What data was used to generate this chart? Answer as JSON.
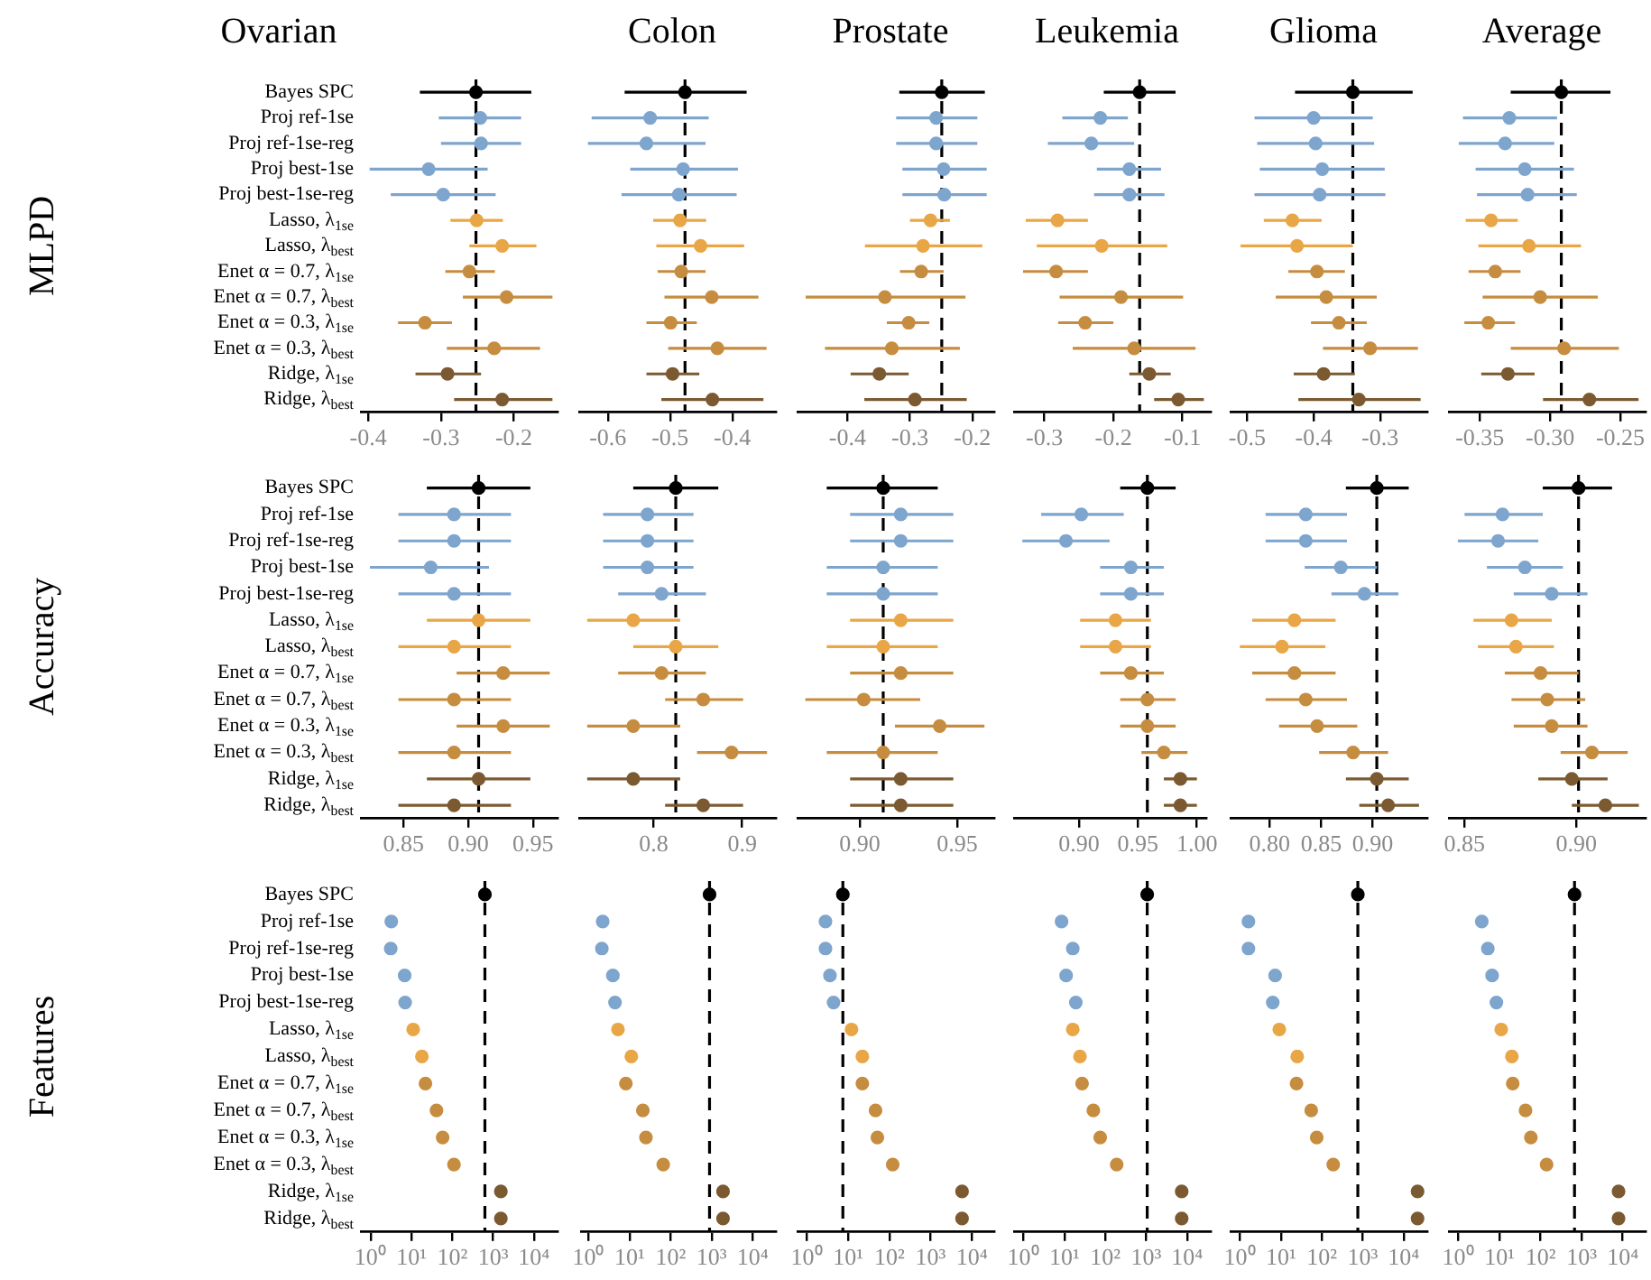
{
  "chart_data": [
    {
      "type": "scatter",
      "orientation": "horizontal",
      "marker": "circle",
      "title": "Ovarian",
      "ylabel": "MLPD",
      "categories": [
        "Bayes SPC",
        "Proj ref-1se",
        "Proj ref-1se-reg",
        "Proj best-1se",
        "Proj best-1se-reg",
        "Lasso, λ$_{1se}$",
        "Lasso, λ$_{best}$",
        "Enet α = 0.7, λ$_{1se}$",
        "Enet α = 0.7, λ$_{best}$",
        "Enet α = 0.3, λ$_{1se}$",
        "Enet α = 0.3, λ$_{best}$",
        "Ridge, λ$_{1se}$",
        "Ridge, λ$_{best}$"
      ],
      "colors": [
        "#000000",
        "#7ea5cd",
        "#7ea5cd",
        "#7ea5cd",
        "#7ea5cd",
        "#e9a647",
        "#e9a647",
        "#c68d40",
        "#c68d40",
        "#c68d40",
        "#c68d40",
        "#7c5a31",
        "#7c5a31"
      ],
      "xlim": [
        -0.41,
        -0.14
      ],
      "xticks": [
        -0.4,
        -0.3,
        -0.2
      ],
      "ref_lines": [
        {
          "axis": "x",
          "value": -0.252,
          "line_style": "dashed"
        }
      ],
      "values": [
        -0.252,
        -0.246,
        -0.245,
        -0.317,
        -0.297,
        -0.251,
        -0.216,
        -0.261,
        -0.21,
        -0.322,
        -0.227,
        -0.291,
        -0.216
      ],
      "errors": [
        [
          -0.329,
          -0.176
        ],
        [
          -0.303,
          -0.19
        ],
        [
          -0.3,
          -0.19
        ],
        [
          -0.398,
          -0.236
        ],
        [
          -0.369,
          -0.225
        ],
        [
          -0.287,
          -0.215
        ],
        [
          -0.261,
          -0.169
        ],
        [
          -0.294,
          -0.226
        ],
        [
          -0.27,
          -0.147
        ],
        [
          -0.359,
          -0.285
        ],
        [
          -0.292,
          -0.164
        ],
        [
          -0.335,
          -0.245
        ],
        [
          -0.282,
          -0.147
        ]
      ]
    },
    {
      "type": "scatter",
      "orientation": "horizontal",
      "marker": "circle",
      "tick_labels": "x",
      "title": "Colon",
      "categories": [
        null,
        null,
        null,
        null,
        null,
        null,
        null,
        null,
        null,
        null,
        null,
        null,
        null
      ],
      "colors": [
        "#000000",
        "#7ea5cd",
        "#7ea5cd",
        "#7ea5cd",
        "#7ea5cd",
        "#e9a647",
        "#e9a647",
        "#c68d40",
        "#c68d40",
        "#c68d40",
        "#c68d40",
        "#7c5a31",
        "#7c5a31"
      ],
      "xlim": [
        -0.646,
        -0.33
      ],
      "xticks": [
        -0.6,
        -0.5,
        -0.4
      ],
      "ref_lines": [
        {
          "axis": "x",
          "value": -0.476,
          "line_style": "dashed"
        }
      ],
      "values": [
        -0.476,
        -0.532,
        -0.538,
        -0.479,
        -0.486,
        -0.484,
        -0.451,
        -0.482,
        -0.433,
        -0.499,
        -0.424,
        -0.496,
        -0.432
      ],
      "errors": [
        [
          -0.573,
          -0.377
        ],
        [
          -0.626,
          -0.438
        ],
        [
          -0.632,
          -0.443
        ],
        [
          -0.564,
          -0.391
        ],
        [
          -0.578,
          -0.393
        ],
        [
          -0.527,
          -0.442
        ],
        [
          -0.522,
          -0.381
        ],
        [
          -0.52,
          -0.443
        ],
        [
          -0.509,
          -0.358
        ],
        [
          -0.538,
          -0.457
        ],
        [
          -0.503,
          -0.345
        ],
        [
          -0.538,
          -0.453
        ],
        [
          -0.514,
          -0.35
        ]
      ]
    },
    {
      "type": "scatter",
      "orientation": "horizontal",
      "marker": "circle",
      "tick_labels": "x",
      "title": "Prostate",
      "categories": [
        null,
        null,
        null,
        null,
        null,
        null,
        null,
        null,
        null,
        null,
        null,
        null,
        null
      ],
      "colors": [
        "#000000",
        "#7ea5cd",
        "#7ea5cd",
        "#7ea5cd",
        "#7ea5cd",
        "#e9a647",
        "#e9a647",
        "#c68d40",
        "#c68d40",
        "#c68d40",
        "#c68d40",
        "#7c5a31",
        "#7c5a31"
      ],
      "xlim": [
        -0.48,
        -0.165
      ],
      "xticks": [
        -0.4,
        -0.3,
        -0.2
      ],
      "ref_lines": [
        {
          "axis": "x",
          "value": -0.249,
          "line_style": "dashed"
        }
      ],
      "values": [
        -0.249,
        -0.258,
        -0.258,
        -0.246,
        -0.245,
        -0.267,
        -0.279,
        -0.282,
        -0.34,
        -0.302,
        -0.329,
        -0.349,
        -0.292
      ],
      "errors": [
        [
          -0.317,
          -0.18
        ],
        [
          -0.322,
          -0.192
        ],
        [
          -0.322,
          -0.192
        ],
        [
          -0.312,
          -0.177
        ],
        [
          -0.312,
          -0.177
        ],
        [
          -0.3,
          -0.236
        ],
        [
          -0.372,
          -0.184
        ],
        [
          -0.316,
          -0.246
        ],
        [
          -0.467,
          -0.211
        ],
        [
          -0.337,
          -0.269
        ],
        [
          -0.436,
          -0.22
        ],
        [
          -0.395,
          -0.302
        ],
        [
          -0.373,
          -0.209
        ]
      ]
    },
    {
      "type": "scatter",
      "orientation": "horizontal",
      "marker": "circle",
      "tick_labels": "x",
      "title": "Leukemia",
      "categories": [
        null,
        null,
        null,
        null,
        null,
        null,
        null,
        null,
        null,
        null,
        null,
        null,
        null
      ],
      "colors": [
        "#000000",
        "#7ea5cd",
        "#7ea5cd",
        "#7ea5cd",
        "#7ea5cd",
        "#e9a647",
        "#e9a647",
        "#c68d40",
        "#c68d40",
        "#c68d40",
        "#c68d40",
        "#7c5a31",
        "#7c5a31"
      ],
      "xlim": [
        -0.344,
        -0.059
      ],
      "xticks": [
        -0.3,
        -0.2,
        -0.1
      ],
      "ref_lines": [
        {
          "axis": "x",
          "value": -0.162,
          "line_style": "dashed"
        }
      ],
      "values": [
        -0.162,
        -0.219,
        -0.232,
        -0.177,
        -0.177,
        -0.281,
        -0.217,
        -0.283,
        -0.189,
        -0.241,
        -0.17,
        -0.148,
        -0.106
      ],
      "errors": [
        [
          -0.214,
          -0.11
        ],
        [
          -0.274,
          -0.179
        ],
        [
          -0.295,
          -0.17
        ],
        [
          -0.224,
          -0.131
        ],
        [
          -0.228,
          -0.126
        ],
        [
          -0.327,
          -0.237
        ],
        [
          -0.311,
          -0.122
        ],
        [
          -0.331,
          -0.237
        ],
        [
          -0.278,
          -0.099
        ],
        [
          -0.28,
          -0.2
        ],
        [
          -0.259,
          -0.081
        ],
        [
          -0.177,
          -0.117
        ],
        [
          -0.141,
          -0.069
        ]
      ]
    },
    {
      "type": "scatter",
      "orientation": "horizontal",
      "marker": "circle",
      "tick_labels": "x",
      "title": "Glioma",
      "categories": [
        null,
        null,
        null,
        null,
        null,
        null,
        null,
        null,
        null,
        null,
        null,
        null,
        null
      ],
      "colors": [
        "#000000",
        "#7ea5cd",
        "#7ea5cd",
        "#7ea5cd",
        "#7ea5cd",
        "#e9a647",
        "#e9a647",
        "#c68d40",
        "#c68d40",
        "#c68d40",
        "#c68d40",
        "#7c5a31",
        "#7c5a31"
      ],
      "xlim": [
        -0.525,
        -0.229
      ],
      "xticks": [
        -0.5,
        -0.4,
        -0.3
      ],
      "ref_lines": [
        {
          "axis": "x",
          "value": -0.341,
          "line_style": "dashed"
        }
      ],
      "values": [
        -0.341,
        -0.4,
        -0.397,
        -0.387,
        -0.391,
        -0.432,
        -0.425,
        -0.395,
        -0.381,
        -0.362,
        -0.315,
        -0.385,
        -0.332
      ],
      "errors": [
        [
          -0.428,
          -0.251
        ],
        [
          -0.489,
          -0.311
        ],
        [
          -0.485,
          -0.309
        ],
        [
          -0.481,
          -0.293
        ],
        [
          -0.489,
          -0.292
        ],
        [
          -0.475,
          -0.388
        ],
        [
          -0.51,
          -0.341
        ],
        [
          -0.438,
          -0.353
        ],
        [
          -0.457,
          -0.305
        ],
        [
          -0.404,
          -0.32
        ],
        [
          -0.386,
          -0.243
        ],
        [
          -0.43,
          -0.338
        ],
        [
          -0.423,
          -0.239
        ]
      ]
    },
    {
      "type": "scatter",
      "orientation": "horizontal",
      "marker": "circle",
      "tick_labels": "x",
      "title": "Average",
      "categories": [
        null,
        null,
        null,
        null,
        null,
        null,
        null,
        null,
        null,
        null,
        null,
        null,
        null
      ],
      "colors": [
        "#000000",
        "#7ea5cd",
        "#7ea5cd",
        "#7ea5cd",
        "#7ea5cd",
        "#e9a647",
        "#e9a647",
        "#c68d40",
        "#c68d40",
        "#c68d40",
        "#c68d40",
        "#7c5a31",
        "#7c5a31"
      ],
      "xlim": [
        -0.372,
        -0.232
      ],
      "xticks": [
        -0.35,
        {
          "value": -0.3,
          "label": "-0.30"
        },
        -0.25
      ],
      "ref_lines": [
        {
          "axis": "x",
          "value": -0.292,
          "line_style": "dashed"
        }
      ],
      "values": [
        -0.292,
        -0.329,
        -0.332,
        -0.318,
        -0.316,
        -0.342,
        -0.315,
        -0.339,
        -0.307,
        -0.344,
        -0.29,
        -0.33,
        -0.272
      ],
      "errors": [
        [
          -0.328,
          -0.257
        ],
        [
          -0.362,
          -0.295
        ],
        [
          -0.365,
          -0.297
        ],
        [
          -0.353,
          -0.283
        ],
        [
          -0.352,
          -0.281
        ],
        [
          -0.36,
          -0.323
        ],
        [
          -0.351,
          -0.278
        ],
        [
          -0.358,
          -0.321
        ],
        [
          -0.348,
          -0.266
        ],
        [
          -0.361,
          -0.325
        ],
        [
          -0.328,
          -0.251
        ],
        [
          -0.349,
          -0.311
        ],
        [
          -0.305,
          -0.237
        ]
      ]
    },
    {
      "type": "scatter",
      "orientation": "horizontal",
      "marker": "circle",
      "ylabel": "Accuracy",
      "categories": [
        "Bayes SPC",
        "Proj ref-1se",
        "Proj ref-1se-reg",
        "Proj best-1se",
        "Proj best-1se-reg",
        "Lasso, λ$_{1se}$",
        "Lasso, λ$_{best}$",
        "Enet α = 0.7, λ$_{1se}$",
        "Enet α = 0.7, λ$_{best}$",
        "Enet α = 0.3, λ$_{1se}$",
        "Enet α = 0.3, λ$_{best}$",
        "Ridge, λ$_{1se}$",
        "Ridge, λ$_{best}$"
      ],
      "colors": [
        "#000000",
        "#7ea5cd",
        "#7ea5cd",
        "#7ea5cd",
        "#7ea5cd",
        "#e9a647",
        "#e9a647",
        "#c68d40",
        "#c68d40",
        "#c68d40",
        "#c68d40",
        "#7c5a31",
        "#7c5a31"
      ],
      "xlim": [
        0.817,
        0.969
      ],
      "xticks": [
        0.85,
        {
          "value": 0.9,
          "label": "0.90"
        },
        0.95
      ],
      "ref_lines": [
        {
          "axis": "x",
          "value": 0.908,
          "line_style": "dashed"
        }
      ],
      "values": [
        0.908,
        0.889,
        0.889,
        0.871,
        0.889,
        0.908,
        0.889,
        0.927,
        0.889,
        0.927,
        0.889,
        0.908,
        0.889
      ],
      "errors": [
        [
          0.868,
          0.948
        ],
        [
          0.846,
          0.933
        ],
        [
          0.846,
          0.933
        ],
        [
          0.824,
          0.916
        ],
        [
          0.846,
          0.933
        ],
        [
          0.868,
          0.948
        ],
        [
          0.846,
          0.933
        ],
        [
          0.891,
          0.963
        ],
        [
          0.846,
          0.933
        ],
        [
          0.891,
          0.963
        ],
        [
          0.846,
          0.933
        ],
        [
          0.868,
          0.948
        ],
        [
          0.846,
          0.933
        ]
      ]
    },
    {
      "type": "scatter",
      "orientation": "horizontal",
      "marker": "circle",
      "tick_labels": "x",
      "categories": [
        null,
        null,
        null,
        null,
        null,
        null,
        null,
        null,
        null,
        null,
        null,
        null,
        null
      ],
      "colors": [
        "#000000",
        "#7ea5cd",
        "#7ea5cd",
        "#7ea5cd",
        "#7ea5cd",
        "#e9a647",
        "#e9a647",
        "#c68d40",
        "#c68d40",
        "#c68d40",
        "#c68d40",
        "#7c5a31",
        "#7c5a31"
      ],
      "xlim": [
        0.716,
        0.938
      ],
      "xticks": [
        0.8,
        0.9
      ],
      "ref_lines": [
        {
          "axis": "x",
          "value": 0.825,
          "line_style": "dashed"
        }
      ],
      "values": [
        0.825,
        0.793,
        0.793,
        0.793,
        0.809,
        0.777,
        0.825,
        0.809,
        0.856,
        0.777,
        0.888,
        0.777,
        0.856
      ],
      "errors": [
        [
          0.777,
          0.873
        ],
        [
          0.743,
          0.845
        ],
        [
          0.743,
          0.845
        ],
        [
          0.743,
          0.845
        ],
        [
          0.76,
          0.859
        ],
        [
          0.725,
          0.83
        ],
        [
          0.777,
          0.873
        ],
        [
          0.76,
          0.859
        ],
        [
          0.813,
          0.901
        ],
        [
          0.725,
          0.83
        ],
        [
          0.849,
          0.928
        ],
        [
          0.725,
          0.83
        ],
        [
          0.813,
          0.901
        ]
      ]
    },
    {
      "type": "scatter",
      "orientation": "horizontal",
      "marker": "circle",
      "tick_labels": "x",
      "categories": [
        null,
        null,
        null,
        null,
        null,
        null,
        null,
        null,
        null,
        null,
        null,
        null,
        null
      ],
      "colors": [
        "#000000",
        "#7ea5cd",
        "#7ea5cd",
        "#7ea5cd",
        "#7ea5cd",
        "#e9a647",
        "#e9a647",
        "#c68d40",
        "#c68d40",
        "#c68d40",
        "#c68d40",
        "#7c5a31",
        "#7c5a31"
      ],
      "xlim": [
        0.868,
        0.969
      ],
      "xticks": [
        {
          "value": 0.9,
          "label": "0.90"
        },
        0.95
      ],
      "ref_lines": [
        {
          "axis": "x",
          "value": 0.912,
          "line_style": "dashed"
        }
      ],
      "values": [
        0.912,
        0.921,
        0.921,
        0.912,
        0.912,
        0.921,
        0.912,
        0.921,
        0.902,
        0.941,
        0.912,
        0.921,
        0.921
      ],
      "errors": [
        [
          0.883,
          0.94
        ],
        [
          0.895,
          0.948
        ],
        [
          0.895,
          0.948
        ],
        [
          0.883,
          0.94
        ],
        [
          0.883,
          0.94
        ],
        [
          0.895,
          0.948
        ],
        [
          0.883,
          0.94
        ],
        [
          0.895,
          0.948
        ],
        [
          0.872,
          0.931
        ],
        [
          0.918,
          0.964
        ],
        [
          0.883,
          0.94
        ],
        [
          0.895,
          0.948
        ],
        [
          0.895,
          0.948
        ]
      ]
    },
    {
      "type": "scatter",
      "orientation": "horizontal",
      "marker": "circle",
      "tick_labels": "x",
      "categories": [
        null,
        null,
        null,
        null,
        null,
        null,
        null,
        null,
        null,
        null,
        null,
        null,
        null
      ],
      "colors": [
        "#000000",
        "#7ea5cd",
        "#7ea5cd",
        "#7ea5cd",
        "#7ea5cd",
        "#e9a647",
        "#e9a647",
        "#c68d40",
        "#c68d40",
        "#c68d40",
        "#c68d40",
        "#7c5a31",
        "#7c5a31"
      ],
      "xlim": [
        0.845,
        1.008
      ],
      "xticks": [
        {
          "value": 0.9,
          "label": "0.90"
        },
        0.95,
        {
          "value": 1,
          "label": "1.00"
        }
      ],
      "ref_lines": [
        {
          "axis": "x",
          "value": 0.958,
          "line_style": "dashed"
        }
      ],
      "values": [
        0.958,
        0.902,
        0.889,
        0.944,
        0.944,
        0.931,
        0.931,
        0.944,
        0.958,
        0.958,
        0.972,
        0.986,
        0.986
      ],
      "errors": [
        [
          0.935,
          0.982
        ],
        [
          0.868,
          0.938
        ],
        [
          0.852,
          0.926
        ],
        [
          0.918,
          0.972
        ],
        [
          0.918,
          0.972
        ],
        [
          0.901,
          0.961
        ],
        [
          0.901,
          0.961
        ],
        [
          0.918,
          0.972
        ],
        [
          0.935,
          0.982
        ],
        [
          0.935,
          0.982
        ],
        [
          0.953,
          0.992
        ],
        [
          0.972,
          1.0
        ],
        [
          0.972,
          1.0
        ]
      ]
    },
    {
      "type": "scatter",
      "orientation": "horizontal",
      "marker": "circle",
      "tick_labels": "x",
      "categories": [
        null,
        null,
        null,
        null,
        null,
        null,
        null,
        null,
        null,
        null,
        null,
        null,
        null
      ],
      "colors": [
        "#000000",
        "#7ea5cd",
        "#7ea5cd",
        "#7ea5cd",
        "#7ea5cd",
        "#e9a647",
        "#e9a647",
        "#c68d40",
        "#c68d40",
        "#c68d40",
        "#c68d40",
        "#7c5a31",
        "#7c5a31"
      ],
      "xlim": [
        0.762,
        0.953
      ],
      "xticks": [
        {
          "value": 0.8,
          "label": "0.80"
        },
        0.85,
        {
          "value": 0.9,
          "label": "0.90"
        }
      ],
      "ref_lines": [
        {
          "axis": "x",
          "value": 0.904,
          "line_style": "dashed"
        }
      ],
      "values": [
        0.904,
        0.835,
        0.835,
        0.869,
        0.892,
        0.824,
        0.812,
        0.824,
        0.835,
        0.846,
        0.881,
        0.904,
        0.915
      ],
      "errors": [
        [
          0.874,
          0.935
        ],
        [
          0.796,
          0.875
        ],
        [
          0.796,
          0.875
        ],
        [
          0.834,
          0.904
        ],
        [
          0.86,
          0.925
        ],
        [
          0.783,
          0.864
        ],
        [
          0.771,
          0.854
        ],
        [
          0.783,
          0.864
        ],
        [
          0.796,
          0.875
        ],
        [
          0.809,
          0.885
        ],
        [
          0.848,
          0.915
        ],
        [
          0.874,
          0.935
        ],
        [
          0.887,
          0.945
        ]
      ]
    },
    {
      "type": "scatter",
      "orientation": "horizontal",
      "marker": "circle",
      "tick_labels": "x",
      "categories": [
        null,
        null,
        null,
        null,
        null,
        null,
        null,
        null,
        null,
        null,
        null,
        null,
        null
      ],
      "colors": [
        "#000000",
        "#7ea5cd",
        "#7ea5cd",
        "#7ea5cd",
        "#7ea5cd",
        "#e9a647",
        "#e9a647",
        "#c68d40",
        "#c68d40",
        "#c68d40",
        "#c68d40",
        "#7c5a31",
        "#7c5a31"
      ],
      "xlim": [
        0.843,
        0.931
      ],
      "xticks": [
        0.85,
        {
          "value": 0.9,
          "label": "0.90"
        }
      ],
      "ref_lines": [
        {
          "axis": "x",
          "value": 0.901,
          "line_style": "dashed"
        }
      ],
      "values": [
        0.901,
        0.867,
        0.865,
        0.877,
        0.889,
        0.871,
        0.873,
        0.884,
        0.887,
        0.889,
        0.907,
        0.898,
        0.913
      ],
      "errors": [
        [
          0.885,
          0.916
        ],
        [
          0.85,
          0.885
        ],
        [
          0.847,
          0.883
        ],
        [
          0.86,
          0.894
        ],
        [
          0.872,
          0.905
        ],
        [
          0.854,
          0.889
        ],
        [
          0.856,
          0.89
        ],
        [
          0.868,
          0.901
        ],
        [
          0.871,
          0.904
        ],
        [
          0.872,
          0.905
        ],
        [
          0.893,
          0.923
        ],
        [
          0.883,
          0.914
        ],
        [
          0.898,
          0.928
        ]
      ]
    },
    {
      "type": "scatter",
      "orientation": "horizontal",
      "marker": "circle",
      "log": "x",
      "ylabel": "Features",
      "categories": [
        "Bayes SPC",
        "Proj ref-1se",
        "Proj ref-1se-reg",
        "Proj best-1se",
        "Proj best-1se-reg",
        "Lasso, λ$_{1se}$",
        "Lasso, λ$_{best}$",
        "Enet α = 0.7, λ$_{1se}$",
        "Enet α = 0.7, λ$_{best}$",
        "Enet α = 0.3, λ$_{1se}$",
        "Enet α = 0.3, λ$_{best}$",
        "Ridge, λ$_{1se}$",
        "Ridge, λ$_{best}$"
      ],
      "colors": [
        "#000000",
        "#7ea5cd",
        "#7ea5cd",
        "#7ea5cd",
        "#7ea5cd",
        "#e9a647",
        "#e9a647",
        "#c68d40",
        "#c68d40",
        "#c68d40",
        "#c68d40",
        "#7c5a31",
        "#7c5a31"
      ],
      "xlim": [
        0.575,
        38000
      ],
      "xticks": [
        {
          "value": 1,
          "label": "10⁰"
        },
        {
          "value": 10,
          "label": "10¹"
        },
        {
          "value": 100,
          "label": "10²"
        },
        {
          "value": 1000,
          "label": "10³"
        },
        {
          "value": 10000,
          "label": "10⁴"
        }
      ],
      "ref_lines": [
        {
          "axis": "x",
          "value": 630,
          "line_style": "dashed"
        }
      ],
      "values": [
        630,
        3.2,
        3.1,
        6.8,
        7,
        11,
        18,
        22,
        41,
        58,
        110,
        1550,
        1550
      ]
    },
    {
      "type": "scatter",
      "orientation": "horizontal",
      "marker": "circle",
      "log": "x",
      "tick_labels": "x",
      "categories": [
        null,
        null,
        null,
        null,
        null,
        null,
        null,
        null,
        null,
        null,
        null,
        null,
        null
      ],
      "colors": [
        "#000000",
        "#7ea5cd",
        "#7ea5cd",
        "#7ea5cd",
        "#7ea5cd",
        "#e9a647",
        "#e9a647",
        "#c68d40",
        "#c68d40",
        "#c68d40",
        "#c68d40",
        "#7c5a31",
        "#7c5a31"
      ],
      "xlim": [
        0.65,
        37000
      ],
      "xticks": [
        {
          "value": 1,
          "label": "10⁰"
        },
        {
          "value": 10,
          "label": "10¹"
        },
        {
          "value": 100,
          "label": "10²"
        },
        {
          "value": 1000,
          "label": "10³"
        },
        {
          "value": 10000,
          "label": "10⁴"
        }
      ],
      "ref_lines": [
        {
          "axis": "x",
          "value": 890,
          "line_style": "dashed"
        }
      ],
      "values": [
        890,
        2.2,
        2.1,
        3.9,
        4.4,
        5.2,
        11,
        8.1,
        21,
        25,
        66,
        1900,
        1900
      ]
    },
    {
      "type": "scatter",
      "orientation": "horizontal",
      "marker": "circle",
      "log": "x",
      "tick_labels": "x",
      "categories": [
        null,
        null,
        null,
        null,
        null,
        null,
        null,
        null,
        null,
        null,
        null,
        null,
        null
      ],
      "colors": [
        "#000000",
        "#7ea5cd",
        "#7ea5cd",
        "#7ea5cd",
        "#7ea5cd",
        "#e9a647",
        "#e9a647",
        "#c68d40",
        "#c68d40",
        "#c68d40",
        "#c68d40",
        "#7c5a31",
        "#7c5a31"
      ],
      "xlim": [
        0.62,
        35000
      ],
      "xticks": [
        {
          "value": 1,
          "label": "10⁰"
        },
        {
          "value": 10,
          "label": "10¹"
        },
        {
          "value": 100,
          "label": "10²"
        },
        {
          "value": 1000,
          "label": "10³"
        },
        {
          "value": 10000,
          "label": "10⁴"
        }
      ],
      "ref_lines": [
        {
          "axis": "x",
          "value": 7.4,
          "line_style": "dashed"
        }
      ],
      "values": [
        7.4,
        2.8,
        2.8,
        3.6,
        4.4,
        12,
        22,
        22,
        46,
        51,
        120,
        5800,
        5800
      ]
    },
    {
      "type": "scatter",
      "orientation": "horizontal",
      "marker": "circle",
      "log": "x",
      "tick_labels": "x",
      "categories": [
        null,
        null,
        null,
        null,
        null,
        null,
        null,
        null,
        null,
        null,
        null,
        null,
        null
      ],
      "colors": [
        "#000000",
        "#7ea5cd",
        "#7ea5cd",
        "#7ea5cd",
        "#7ea5cd",
        "#e9a647",
        "#e9a647",
        "#c68d40",
        "#c68d40",
        "#c68d40",
        "#c68d40",
        "#7c5a31",
        "#7c5a31"
      ],
      "xlim": [
        0.62,
        38000
      ],
      "xticks": [
        {
          "value": 1,
          "label": "10⁰"
        },
        {
          "value": 10,
          "label": "10¹"
        },
        {
          "value": 100,
          "label": "10²"
        },
        {
          "value": 1000,
          "label": "10³"
        },
        {
          "value": 10000,
          "label": "10⁴"
        }
      ],
      "ref_lines": [
        {
          "axis": "x",
          "value": 1060,
          "line_style": "dashed"
        }
      ],
      "values": [
        1060,
        8.5,
        16,
        11,
        19,
        16,
        24,
        27,
        51,
        75,
        190,
        7400,
        7400
      ]
    },
    {
      "type": "scatter",
      "orientation": "horizontal",
      "marker": "circle",
      "log": "x",
      "tick_labels": "x",
      "categories": [
        null,
        null,
        null,
        null,
        null,
        null,
        null,
        null,
        null,
        null,
        null,
        null,
        null
      ],
      "colors": [
        "#000000",
        "#7ea5cd",
        "#7ea5cd",
        "#7ea5cd",
        "#7ea5cd",
        "#e9a647",
        "#e9a647",
        "#c68d40",
        "#c68d40",
        "#c68d40",
        "#c68d40",
        "#7c5a31",
        "#7c5a31"
      ],
      "xlim": [
        0.6,
        38000
      ],
      "xticks": [
        {
          "value": 1,
          "label": "10⁰"
        },
        {
          "value": 10,
          "label": "10¹"
        },
        {
          "value": 100,
          "label": "10²"
        },
        {
          "value": 1000,
          "label": "10³"
        },
        {
          "value": 10000,
          "label": "10⁴"
        }
      ],
      "ref_lines": [
        {
          "axis": "x",
          "value": 760,
          "line_style": "dashed"
        }
      ],
      "values": [
        760,
        1.6,
        1.6,
        7.2,
        6.3,
        9.1,
        25,
        24,
        55,
        75,
        190,
        22000,
        22000
      ]
    },
    {
      "type": "scatter",
      "orientation": "horizontal",
      "marker": "circle",
      "log": "x",
      "tick_labels": "x",
      "categories": [
        null,
        null,
        null,
        null,
        null,
        null,
        null,
        null,
        null,
        null,
        null,
        null,
        null
      ],
      "colors": [
        "#000000",
        "#7ea5cd",
        "#7ea5cd",
        "#7ea5cd",
        "#7ea5cd",
        "#e9a647",
        "#e9a647",
        "#c68d40",
        "#c68d40",
        "#c68d40",
        "#c68d40",
        "#7c5a31",
        "#7c5a31"
      ],
      "xlim": [
        0.62,
        36000
      ],
      "xticks": [
        {
          "value": 1,
          "label": "10⁰"
        },
        {
          "value": 10,
          "label": "10¹"
        },
        {
          "value": 100,
          "label": "10²"
        },
        {
          "value": 1000,
          "label": "10³"
        },
        {
          "value": 10000,
          "label": "10⁴"
        }
      ],
      "ref_lines": [
        {
          "axis": "x",
          "value": 670,
          "line_style": "dashed"
        }
      ],
      "values": [
        670,
        3.7,
        5.2,
        6.6,
        8.4,
        11,
        20,
        21,
        43,
        58,
        140,
        7900,
        7900
      ]
    }
  ]
}
